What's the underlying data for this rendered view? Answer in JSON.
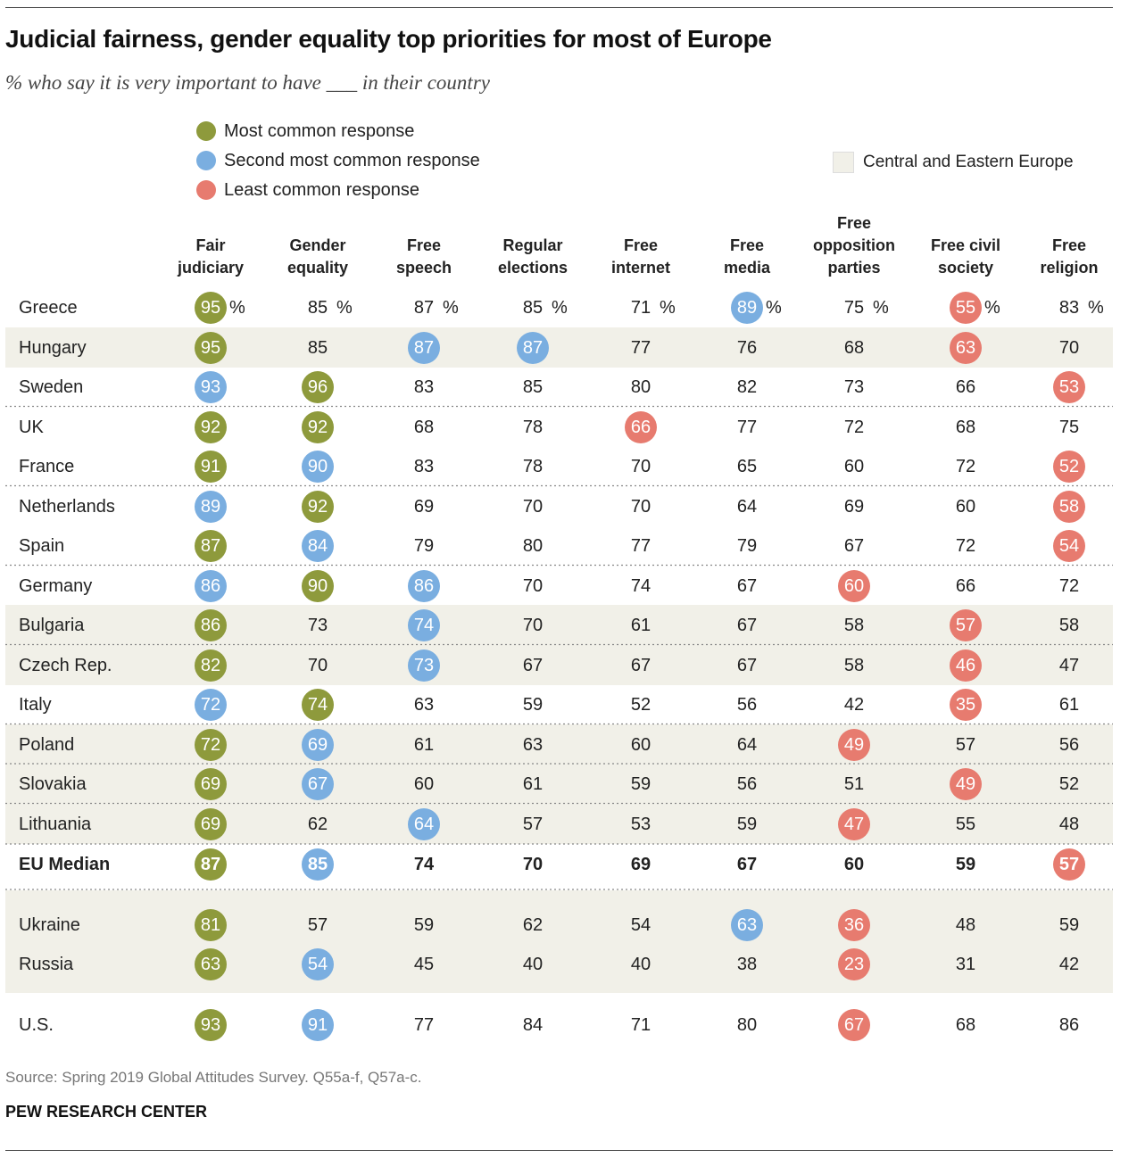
{
  "title": "Judicial fairness, gender equality top priorities for most of Europe",
  "subtitle": "% who say it is very important to have ___ in their country",
  "legend": {
    "most": "Most common response",
    "second": "Second most common response",
    "least": "Least common response",
    "region": "Central and Eastern Europe"
  },
  "colors": {
    "most": "#8e9a3c",
    "second": "#7aaee0",
    "least": "#e77b6f",
    "region_shade": "#f1f0e8"
  },
  "source": "Source: Spring 2019 Global Attitudes Survey. Q55a-f, Q57a-c.",
  "credit": "PEW RESEARCH CENTER",
  "chart_data": {
    "type": "table",
    "columns": [
      [
        "Fair",
        "judiciary"
      ],
      [
        "Gender",
        "equality"
      ],
      [
        "Free",
        "speech"
      ],
      [
        "Regular",
        "elections"
      ],
      [
        "Free",
        "internet"
      ],
      [
        "Free",
        "media"
      ],
      [
        "Free",
        "opposition",
        "parties"
      ],
      [
        "Free civil",
        "society"
      ],
      [
        "Free",
        "religion"
      ]
    ],
    "rows": [
      {
        "country": "Greece",
        "values": [
          95,
          85,
          87,
          85,
          71,
          89,
          75,
          55,
          83
        ],
        "highlight": [
          "most",
          null,
          null,
          null,
          null,
          "second",
          null,
          "least",
          null
        ],
        "cee": false,
        "percent": true
      },
      {
        "country": "Hungary",
        "values": [
          95,
          85,
          87,
          87,
          77,
          76,
          68,
          63,
          70
        ],
        "highlight": [
          "most",
          null,
          "second",
          "second",
          null,
          null,
          null,
          "least",
          null
        ],
        "cee": true
      },
      {
        "country": "Sweden",
        "values": [
          93,
          96,
          83,
          85,
          80,
          82,
          73,
          66,
          53
        ],
        "highlight": [
          "second",
          "most",
          null,
          null,
          null,
          null,
          null,
          null,
          "least"
        ],
        "cee": false
      },
      {
        "country": "UK",
        "values": [
          92,
          92,
          68,
          78,
          66,
          77,
          72,
          68,
          75
        ],
        "highlight": [
          "most",
          "most",
          null,
          null,
          "least",
          null,
          null,
          null,
          null
        ],
        "cee": false
      },
      {
        "country": "France",
        "values": [
          91,
          90,
          83,
          78,
          70,
          65,
          60,
          72,
          52
        ],
        "highlight": [
          "most",
          "second",
          null,
          null,
          null,
          null,
          null,
          null,
          "least"
        ],
        "cee": false
      },
      {
        "country": "Netherlands",
        "values": [
          89,
          92,
          69,
          70,
          70,
          64,
          69,
          60,
          58
        ],
        "highlight": [
          "second",
          "most",
          null,
          null,
          null,
          null,
          null,
          null,
          "least"
        ],
        "cee": false
      },
      {
        "country": "Spain",
        "values": [
          87,
          84,
          79,
          80,
          77,
          79,
          67,
          72,
          54
        ],
        "highlight": [
          "most",
          "second",
          null,
          null,
          null,
          null,
          null,
          null,
          "least"
        ],
        "cee": false
      },
      {
        "country": "Germany",
        "values": [
          86,
          90,
          86,
          70,
          74,
          67,
          60,
          66,
          72
        ],
        "highlight": [
          "second",
          "most",
          "second",
          null,
          null,
          null,
          "least",
          null,
          null
        ],
        "cee": false
      },
      {
        "country": "Bulgaria",
        "values": [
          86,
          73,
          74,
          70,
          61,
          67,
          58,
          57,
          58
        ],
        "highlight": [
          "most",
          null,
          "second",
          null,
          null,
          null,
          null,
          "least",
          null
        ],
        "cee": true
      },
      {
        "country": "Czech Rep.",
        "values": [
          82,
          70,
          73,
          67,
          67,
          67,
          58,
          46,
          47
        ],
        "highlight": [
          "most",
          null,
          "second",
          null,
          null,
          null,
          null,
          "least",
          null
        ],
        "cee": true
      },
      {
        "country": "Italy",
        "values": [
          72,
          74,
          63,
          59,
          52,
          56,
          42,
          35,
          61
        ],
        "highlight": [
          "second",
          "most",
          null,
          null,
          null,
          null,
          null,
          "least",
          null
        ],
        "cee": false
      },
      {
        "country": "Poland",
        "values": [
          72,
          69,
          61,
          63,
          60,
          64,
          49,
          57,
          56
        ],
        "highlight": [
          "most",
          "second",
          null,
          null,
          null,
          null,
          "least",
          null,
          null
        ],
        "cee": true
      },
      {
        "country": "Slovakia",
        "values": [
          69,
          67,
          60,
          61,
          59,
          56,
          51,
          49,
          52
        ],
        "highlight": [
          "most",
          "second",
          null,
          null,
          null,
          null,
          null,
          "least",
          null
        ],
        "cee": true
      },
      {
        "country": "Lithuania",
        "values": [
          69,
          62,
          64,
          57,
          53,
          59,
          47,
          55,
          48
        ],
        "highlight": [
          "most",
          null,
          "second",
          null,
          null,
          null,
          "least",
          null,
          null
        ],
        "cee": true
      },
      {
        "country": "EU Median",
        "values": [
          87,
          85,
          74,
          70,
          69,
          67,
          60,
          59,
          57
        ],
        "highlight": [
          "most",
          "second",
          null,
          null,
          null,
          null,
          null,
          null,
          "least"
        ],
        "cee": false,
        "bold": true
      },
      {
        "country": "Ukraine",
        "values": [
          81,
          57,
          59,
          62,
          54,
          63,
          36,
          48,
          59
        ],
        "highlight": [
          "most",
          null,
          null,
          null,
          null,
          "second",
          "least",
          null,
          null
        ],
        "cee": true
      },
      {
        "country": "Russia",
        "values": [
          63,
          54,
          45,
          40,
          40,
          38,
          23,
          31,
          42
        ],
        "highlight": [
          "most",
          "second",
          null,
          null,
          null,
          null,
          "least",
          null,
          null
        ],
        "cee": true
      },
      {
        "country": "U.S.",
        "values": [
          93,
          91,
          77,
          84,
          71,
          80,
          67,
          68,
          86
        ],
        "highlight": [
          "most",
          "second",
          null,
          null,
          null,
          null,
          "least",
          null,
          null
        ],
        "cee": false
      }
    ]
  }
}
